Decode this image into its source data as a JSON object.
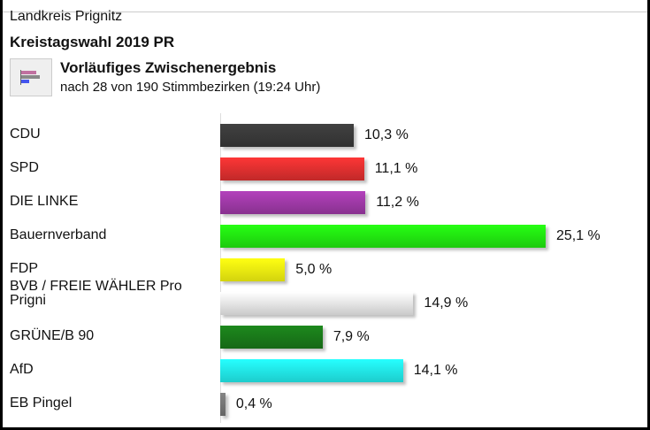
{
  "header": {
    "region": "Landkreis Prignitz",
    "title": "Kreistagswahl 2019 PR",
    "subtitle": "Vorläufiges Zwischenergebnis",
    "note": "nach 28 von 190 Stimmbezirken (19:24 Uhr)",
    "icon": "bar-chart-icon"
  },
  "chart_data": {
    "type": "bar",
    "orientation": "horizontal",
    "unit": "%",
    "categories": [
      "CDU",
      "SPD",
      "DIE LINKE",
      "Bauernverband",
      "FDP",
      "BVB / FREIE WÄHLER Pro Prigni",
      "GRÜNE/B 90",
      "AfD",
      "EB Pingel"
    ],
    "values": [
      10.3,
      11.1,
      11.2,
      25.1,
      5.0,
      14.9,
      7.9,
      14.1,
      0.4
    ],
    "labels": [
      "10,3 %",
      "11,1 %",
      "11,2 %",
      "25,1 %",
      "5,0 %",
      "14,9 %",
      "7,9 %",
      "14,1 %",
      "0,4 %"
    ],
    "colors": [
      "#3a3a3a",
      "#e23030",
      "#a03aa8",
      "#22ee11",
      "#f8f810",
      "#eeeeee",
      "#1a7a1a",
      "#22f0f0",
      "#777777"
    ]
  }
}
